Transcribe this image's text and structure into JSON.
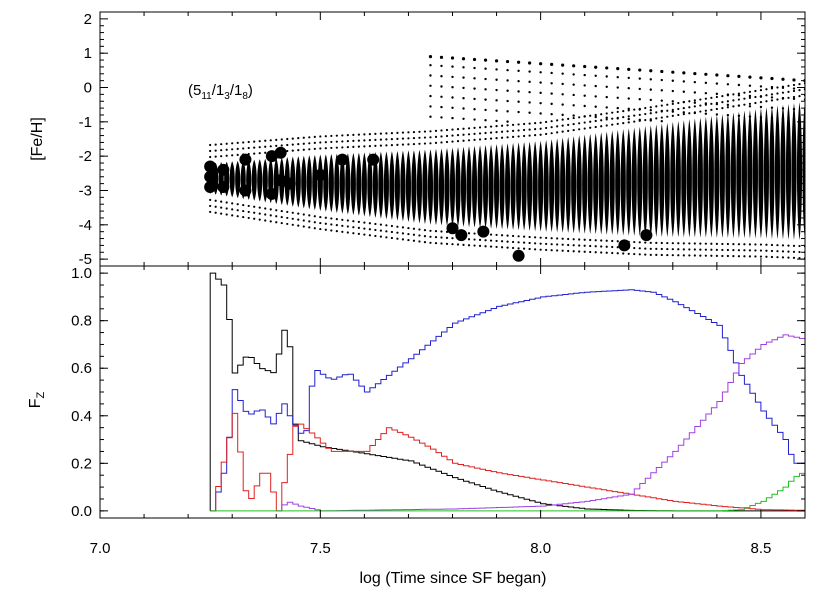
{
  "chart_data": [
    {
      "type": "scatter",
      "panel": "top",
      "ylabel": "[Fe/H]",
      "xlim": [
        7.0,
        8.6
      ],
      "ylim": [
        -5.2,
        2.2
      ],
      "yticks": [
        "2",
        "1",
        "0",
        "-1",
        "-2",
        "-3",
        "-4",
        "-5"
      ],
      "annotation": {
        "base": "(5",
        "sub1": "11",
        "mid1": "/1",
        "sub2": "3",
        "mid2": "/1",
        "sub3": "8",
        "end": ")"
      },
      "large_points": [
        {
          "x": 7.25,
          "y": -2.3
        },
        {
          "x": 7.25,
          "y": -2.6
        },
        {
          "x": 7.25,
          "y": -2.9
        },
        {
          "x": 7.28,
          "y": -2.4
        },
        {
          "x": 7.28,
          "y": -2.9
        },
        {
          "x": 7.33,
          "y": -2.1
        },
        {
          "x": 7.33,
          "y": -3.0
        },
        {
          "x": 7.39,
          "y": -2.0
        },
        {
          "x": 7.39,
          "y": -3.1
        },
        {
          "x": 7.41,
          "y": -1.9
        },
        {
          "x": 7.41,
          "y": -2.7
        },
        {
          "x": 7.43,
          "y": -2.8
        },
        {
          "x": 7.5,
          "y": -2.55
        },
        {
          "x": 7.55,
          "y": -2.1
        },
        {
          "x": 7.62,
          "y": -2.1
        },
        {
          "x": 7.8,
          "y": -4.1
        },
        {
          "x": 7.82,
          "y": -4.3
        },
        {
          "x": 7.87,
          "y": -4.2
        },
        {
          "x": 7.95,
          "y": -4.9
        },
        {
          "x": 8.19,
          "y": -4.6
        },
        {
          "x": 8.24,
          "y": -4.3
        }
      ],
      "column_band": {
        "x_start": 7.25,
        "x_end": 8.6,
        "step": 0.0125,
        "envelope_x": [
          7.25,
          7.5,
          7.75,
          8.0,
          8.25,
          8.5,
          8.6
        ],
        "envelope_top": [
          -2.2,
          -1.95,
          -1.8,
          -1.55,
          -1.1,
          -0.6,
          -0.4
        ],
        "envelope_bottom": [
          -3.1,
          -3.6,
          -4.0,
          -4.2,
          -4.35,
          -4.4,
          -4.45
        ]
      },
      "high_tail": {
        "x_start": 7.75,
        "x_end": 8.6,
        "y_start": 0.9,
        "y_end": 0.2
      }
    },
    {
      "type": "line",
      "panel": "bottom",
      "xlabel": "log (Time since SF began)",
      "ylabel": "F",
      "ylabel_sub": "Z",
      "xlim": [
        7.0,
        8.6
      ],
      "ylim": [
        -0.03,
        1.03
      ],
      "xticks": [
        "7.0",
        "7.5",
        "8.0",
        "8.5"
      ],
      "yticks": [
        "0.0",
        "0.2",
        "0.4",
        "0.6",
        "0.8",
        "1.0"
      ],
      "series": [
        {
          "color": "#000000",
          "points": [
            [
              7.25,
              1.0
            ],
            [
              7.28,
              0.94
            ],
            [
              7.3,
              0.58
            ],
            [
              7.33,
              0.66
            ],
            [
              7.36,
              0.6
            ],
            [
              7.39,
              0.58
            ],
            [
              7.42,
              0.82
            ],
            [
              7.44,
              0.3
            ],
            [
              7.5,
              0.27
            ],
            [
              7.6,
              0.24
            ],
            [
              7.7,
              0.21
            ],
            [
              7.8,
              0.14
            ],
            [
              7.9,
              0.08
            ],
            [
              8.0,
              0.03
            ],
            [
              8.1,
              0.008
            ],
            [
              8.2,
              0.002
            ],
            [
              8.3,
              0.0
            ],
            [
              8.6,
              0.0
            ]
          ]
        },
        {
          "color": "#2020d0",
          "points": [
            [
              7.25,
              0.0
            ],
            [
              7.28,
              0.19
            ],
            [
              7.3,
              0.51
            ],
            [
              7.33,
              0.4
            ],
            [
              7.36,
              0.43
            ],
            [
              7.39,
              0.36
            ],
            [
              7.41,
              0.46
            ],
            [
              7.43,
              0.38
            ],
            [
              7.46,
              0.3
            ],
            [
              7.48,
              0.6
            ],
            [
              7.52,
              0.55
            ],
            [
              7.56,
              0.58
            ],
            [
              7.6,
              0.5
            ],
            [
              7.65,
              0.57
            ],
            [
              7.7,
              0.64
            ],
            [
              7.8,
              0.79
            ],
            [
              7.9,
              0.86
            ],
            [
              8.0,
              0.9
            ],
            [
              8.1,
              0.92
            ],
            [
              8.2,
              0.93
            ],
            [
              8.25,
              0.92
            ],
            [
              8.3,
              0.88
            ],
            [
              8.4,
              0.78
            ],
            [
              8.45,
              0.57
            ],
            [
              8.5,
              0.42
            ],
            [
              8.55,
              0.3
            ],
            [
              8.57,
              0.2
            ],
            [
              8.6,
              0.2
            ]
          ]
        },
        {
          "color": "#e02020",
          "points": [
            [
              7.25,
              0.0
            ],
            [
              7.3,
              0.41
            ],
            [
              7.33,
              0.02
            ],
            [
              7.37,
              0.19
            ],
            [
              7.4,
              0.0
            ],
            [
              7.44,
              0.38
            ],
            [
              7.48,
              0.32
            ],
            [
              7.52,
              0.25
            ],
            [
              7.6,
              0.25
            ],
            [
              7.65,
              0.35
            ],
            [
              7.7,
              0.31
            ],
            [
              7.75,
              0.26
            ],
            [
              7.8,
              0.2
            ],
            [
              7.9,
              0.16
            ],
            [
              8.0,
              0.13
            ],
            [
              8.1,
              0.1
            ],
            [
              8.2,
              0.07
            ],
            [
              8.3,
              0.04
            ],
            [
              8.4,
              0.02
            ],
            [
              8.5,
              0.005
            ],
            [
              8.6,
              0.002
            ]
          ]
        },
        {
          "color": "#a040e0",
          "points": [
            [
              7.4,
              0.0
            ],
            [
              7.42,
              0.04
            ],
            [
              7.45,
              0.02
            ],
            [
              7.5,
              0.0
            ],
            [
              7.6,
              0.003
            ],
            [
              7.8,
              0.008
            ],
            [
              8.0,
              0.02
            ],
            [
              8.1,
              0.04
            ],
            [
              8.2,
              0.07
            ],
            [
              8.3,
              0.25
            ],
            [
              8.4,
              0.46
            ],
            [
              8.45,
              0.62
            ],
            [
              8.5,
              0.7
            ],
            [
              8.55,
              0.74
            ],
            [
              8.6,
              0.72
            ]
          ]
        },
        {
          "color": "#20c020",
          "points": [
            [
              7.25,
              0.0
            ],
            [
              8.4,
              0.0
            ],
            [
              8.45,
              0.005
            ],
            [
              8.5,
              0.04
            ],
            [
              8.55,
              0.1
            ],
            [
              8.57,
              0.14
            ],
            [
              8.6,
              0.17
            ]
          ]
        }
      ]
    }
  ]
}
